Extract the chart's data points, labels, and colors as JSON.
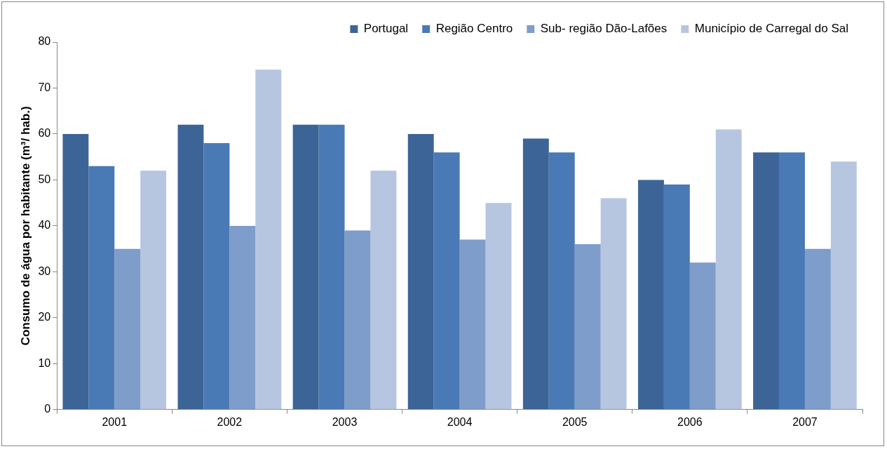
{
  "chart_data": {
    "type": "bar",
    "ylabel": "Consumo de água por habitante (m³/ hab.)",
    "categories": [
      "2001",
      "2002",
      "2003",
      "2004",
      "2005",
      "2006",
      "2007"
    ],
    "series": [
      {
        "name": "Portugal",
        "color": "#3c6496",
        "values": [
          60,
          62,
          62,
          60,
          59,
          50,
          56
        ]
      },
      {
        "name": "Região Centro",
        "color": "#4a7ab5",
        "values": [
          53,
          58,
          62,
          56,
          56,
          49,
          56
        ]
      },
      {
        "name": "Sub- região Dão-Lafões",
        "color": "#7f9dcb",
        "values": [
          35,
          40,
          39,
          37,
          36,
          32,
          35
        ]
      },
      {
        "name": "Município de Carregal do Sal",
        "color": "#b7c6e0",
        "values": [
          52,
          74,
          52,
          45,
          46,
          61,
          54
        ]
      }
    ],
    "ylim": [
      0,
      80
    ],
    "yticks": [
      0,
      10,
      20,
      30,
      40,
      50,
      60,
      70,
      80
    ],
    "grid": false,
    "legend": "top right"
  }
}
